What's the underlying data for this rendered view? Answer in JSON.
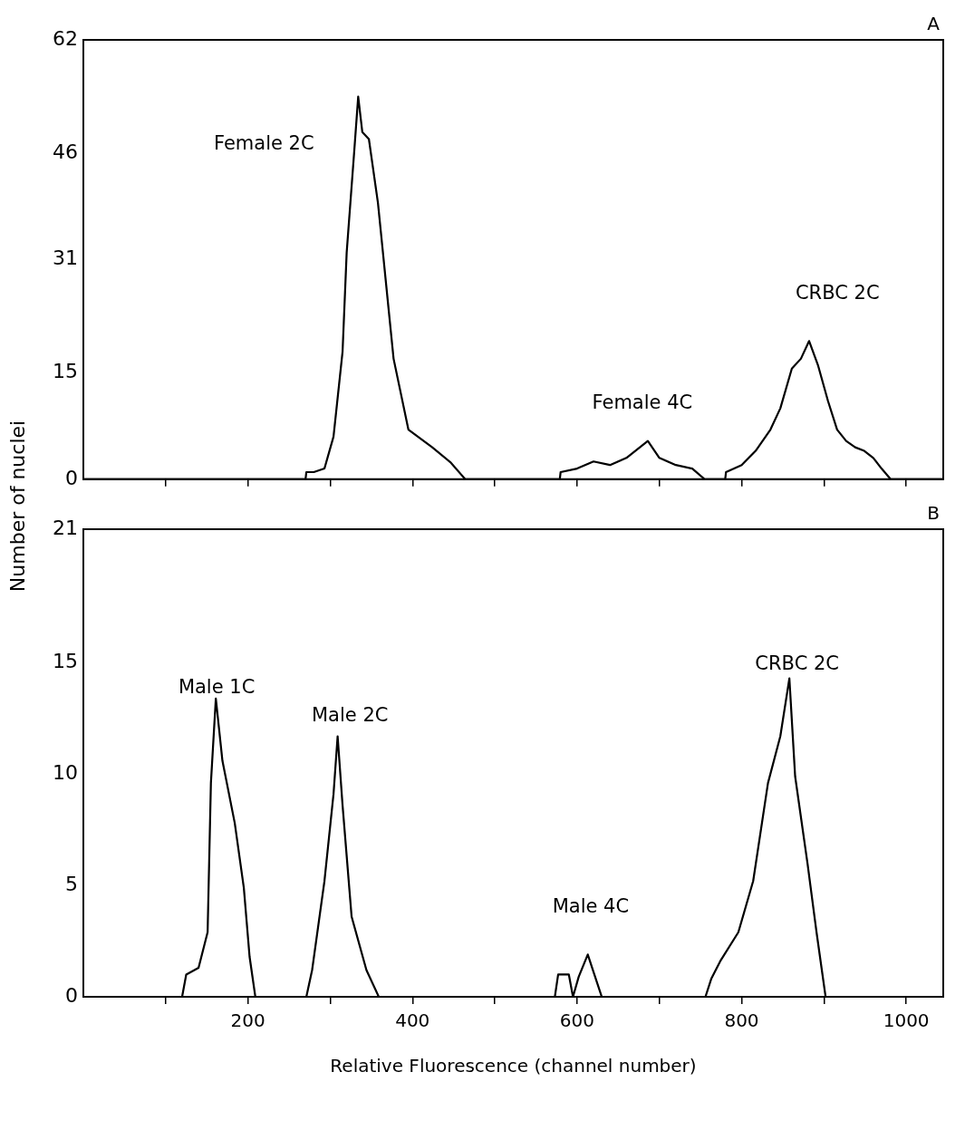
{
  "chart_data": [
    {
      "type": "line",
      "ylabel": "Number of nuclei",
      "xlim": [
        0,
        1045
      ],
      "ylim": [
        0,
        62
      ],
      "yticks": [
        0,
        15,
        31,
        46,
        62
      ],
      "xticks": [
        {
          "value": 100,
          "label": null
        },
        {
          "value": 200,
          "label": null
        },
        {
          "value": 300,
          "label": null
        },
        {
          "value": 400,
          "label": null
        },
        {
          "value": 500,
          "label": null
        },
        {
          "value": 600,
          "label": null
        },
        {
          "value": 700,
          "label": null
        },
        {
          "value": 800,
          "label": null
        },
        {
          "value": 900,
          "label": null
        },
        {
          "value": 1000,
          "label": null
        }
      ],
      "tick_labels": "y",
      "grid": false,
      "legend": false,
      "series": [
        {
          "color": "#000000",
          "x": [
            0,
            270,
            271,
            280,
            293,
            304,
            315,
            320,
            329,
            334,
            339,
            347,
            358,
            377,
            395,
            424,
            446,
            464,
            579,
            580,
            600,
            620,
            640,
            660,
            686,
            700,
            720,
            740,
            755,
            780,
            781,
            800,
            817,
            835,
            847,
            861,
            872,
            882,
            893,
            905,
            916,
            927,
            938,
            949,
            960,
            970,
            981,
            1045
          ],
          "values": [
            0,
            0,
            1,
            1,
            1.5,
            6,
            18,
            32,
            46,
            54,
            49,
            48,
            39,
            17,
            7,
            4.5,
            2.4,
            0,
            0,
            1,
            1.5,
            2.5,
            2,
            3,
            5.4,
            3,
            2,
            1.5,
            0,
            0,
            1,
            2,
            4,
            7,
            10,
            15.6,
            17,
            19.5,
            16,
            11,
            7,
            5.4,
            4.5,
            4,
            3,
            1.5,
            0,
            0
          ]
        }
      ],
      "annotations": [
        "A",
        "Female 2C",
        "Female 4C",
        "CRBC 2C"
      ]
    },
    {
      "type": "line",
      "xlabel": "Relative Fluorescence (channel number)",
      "xlim": [
        0,
        1045
      ],
      "ylim": [
        0,
        21
      ],
      "yticks": [
        0,
        5,
        10,
        15,
        21
      ],
      "xticks": [
        {
          "value": 100,
          "label": null
        },
        200,
        {
          "value": 300,
          "label": null
        },
        400,
        {
          "value": 500,
          "label": null
        },
        600,
        {
          "value": 700,
          "label": null
        },
        800,
        {
          "value": 900,
          "label": null
        },
        1000
      ],
      "grid": false,
      "legend": false,
      "series": [
        {
          "color": "#000000",
          "x": [
            0,
            120,
            125,
            140,
            151,
            155,
            161,
            169,
            184,
            195,
            202,
            209,
            271,
            278,
            293,
            304,
            309,
            315,
            326,
            344,
            359,
            573,
            577,
            590,
            595,
            602,
            613,
            621,
            630,
            756,
            763,
            774,
            796,
            814,
            832,
            847,
            858,
            865,
            880,
            891,
            902,
            1045
          ],
          "values": [
            0,
            0,
            1,
            1.3,
            2.9,
            9.6,
            13.4,
            10.6,
            7.8,
            4.9,
            1.8,
            0,
            0,
            1.2,
            5.2,
            9.1,
            11.7,
            8.6,
            3.6,
            1.2,
            0,
            0,
            1,
            1,
            0,
            0.9,
            1.9,
            1,
            0,
            0,
            0.8,
            1.6,
            2.9,
            5.2,
            9.6,
            11.7,
            14.3,
            9.9,
            6,
            2.9,
            0,
            0
          ]
        }
      ],
      "annotations": [
        "B",
        "Male 1C",
        "Male 2C",
        "Male 4C",
        "CRBC 2C"
      ]
    }
  ]
}
